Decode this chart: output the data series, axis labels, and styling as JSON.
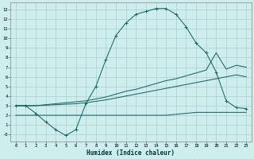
{
  "xlabel": "Humidex (Indice chaleur)",
  "bg_color": "#cdeeed",
  "grid_color": "#b0cccc",
  "line_color": "#1a6666",
  "xlim": [
    -0.5,
    23.5
  ],
  "ylim": [
    -0.7,
    13.7
  ],
  "xtick_vals": [
    0,
    1,
    2,
    3,
    4,
    5,
    6,
    7,
    8,
    9,
    10,
    11,
    12,
    13,
    14,
    15,
    16,
    17,
    18,
    19,
    20,
    21,
    22,
    23
  ],
  "xtick_labels": [
    "0",
    "1",
    "2",
    "3",
    "4",
    "5",
    "6",
    "7",
    "8",
    "9",
    "10",
    "11",
    "12",
    "13",
    "14",
    "15",
    "16",
    "17",
    "18",
    "19",
    "20",
    "21",
    "22",
    "23"
  ],
  "ytick_vals": [
    0,
    1,
    2,
    3,
    4,
    5,
    6,
    7,
    8,
    9,
    10,
    11,
    12,
    13
  ],
  "ytick_labels": [
    "-0",
    "1",
    "2",
    "3",
    "4",
    "5",
    "6",
    "7",
    "8",
    "9",
    "10",
    "11",
    "12",
    "13"
  ],
  "line1_x": [
    0,
    1,
    2,
    3,
    4,
    5,
    6,
    7,
    8,
    9,
    10,
    11,
    12,
    13,
    14,
    15,
    16,
    17,
    18,
    19,
    20,
    21,
    22,
    23
  ],
  "line1_y": [
    3.0,
    3.0,
    2.2,
    1.3,
    0.5,
    -0.1,
    0.5,
    3.2,
    5.0,
    7.8,
    10.3,
    11.6,
    12.5,
    12.8,
    13.1,
    13.1,
    12.5,
    11.2,
    9.5,
    8.5,
    6.5,
    3.5,
    2.8,
    2.7
  ],
  "line2_x": [
    0,
    1,
    2,
    3,
    4,
    5,
    6,
    7,
    8,
    9,
    10,
    11,
    12,
    13,
    14,
    15,
    16,
    17,
    18,
    19,
    20,
    21,
    22,
    23
  ],
  "line2_y": [
    3.0,
    3.0,
    3.0,
    3.1,
    3.2,
    3.3,
    3.4,
    3.5,
    3.7,
    3.9,
    4.2,
    4.5,
    4.7,
    5.0,
    5.3,
    5.6,
    5.8,
    6.1,
    6.4,
    6.7,
    8.5,
    6.8,
    7.2,
    7.0
  ],
  "line3_x": [
    0,
    1,
    2,
    3,
    4,
    5,
    6,
    7,
    8,
    9,
    10,
    11,
    12,
    13,
    14,
    15,
    16,
    17,
    18,
    19,
    20,
    21,
    22,
    23
  ],
  "line3_y": [
    3.0,
    3.0,
    3.0,
    3.05,
    3.1,
    3.15,
    3.2,
    3.3,
    3.45,
    3.6,
    3.8,
    4.0,
    4.2,
    4.4,
    4.6,
    4.8,
    5.0,
    5.2,
    5.4,
    5.6,
    5.8,
    6.0,
    6.2,
    6.0
  ],
  "line4_x": [
    0,
    1,
    2,
    3,
    4,
    5,
    6,
    7,
    8,
    9,
    10,
    11,
    12,
    13,
    14,
    15,
    16,
    17,
    18,
    19,
    20,
    21,
    22,
    23
  ],
  "line4_y": [
    2.0,
    2.0,
    2.0,
    2.0,
    2.0,
    2.0,
    2.0,
    2.0,
    2.0,
    2.0,
    2.0,
    2.0,
    2.0,
    2.0,
    2.0,
    2.0,
    2.1,
    2.2,
    2.3,
    2.3,
    2.3,
    2.3,
    2.3,
    2.3
  ]
}
